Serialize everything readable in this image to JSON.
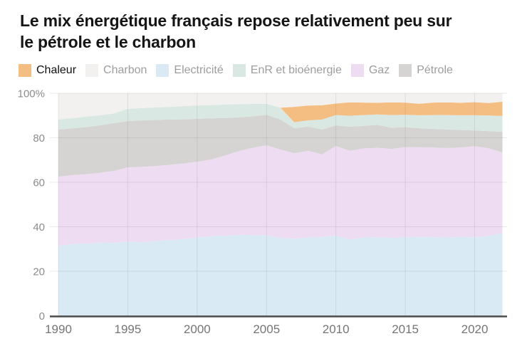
{
  "title": {
    "line1": "Le mix énergétique français repose relativement peu sur",
    "line2": "le pétrole et le charbon"
  },
  "legend": {
    "items": [
      {
        "label": "Chaleur",
        "color": "#f4be82",
        "active": true
      },
      {
        "label": "Charbon",
        "color": "#f2f1ef",
        "active": false
      },
      {
        "label": "Electricité",
        "color": "#d9eaf5",
        "active": false
      },
      {
        "label": "EnR et bioénergie",
        "color": "#d9e8e3",
        "active": false
      },
      {
        "label": "Gaz",
        "color": "#eeddf2",
        "active": false
      },
      {
        "label": "Pétrole",
        "color": "#d5d4d2",
        "active": false
      }
    ]
  },
  "axis": {
    "y_ticks": [
      {
        "v": 0,
        "label": "0"
      },
      {
        "v": 20,
        "label": "20"
      },
      {
        "v": 40,
        "label": "40"
      },
      {
        "v": 60,
        "label": "60"
      },
      {
        "v": 80,
        "label": "80"
      },
      {
        "v": 100,
        "label": "100%"
      }
    ],
    "x_ticks": [
      1990,
      1995,
      2000,
      2005,
      2010,
      2015,
      2020
    ]
  },
  "chart_data": {
    "type": "area",
    "stacked": true,
    "normalized": true,
    "unit": "%",
    "ylim": [
      0,
      100
    ],
    "xlim": [
      1990,
      2022
    ],
    "grid": true,
    "legend_position": "top",
    "x": [
      1990,
      1991,
      1992,
      1993,
      1994,
      1995,
      1996,
      1997,
      1998,
      1999,
      2000,
      2001,
      2002,
      2003,
      2004,
      2005,
      2006,
      2007,
      2008,
      2009,
      2010,
      2011,
      2012,
      2013,
      2014,
      2015,
      2016,
      2017,
      2018,
      2019,
      2020,
      2021,
      2022
    ],
    "series": [
      {
        "name": "Electricité",
        "color": "#d9eaf5",
        "values": [
          31.5,
          32.2,
          32.4,
          32.9,
          32.7,
          33.4,
          33.0,
          33.6,
          34.0,
          34.4,
          35.2,
          35.7,
          36.0,
          36.4,
          36.3,
          36.2,
          35.0,
          34.6,
          35.2,
          35.5,
          36.0,
          34.2,
          35.2,
          35.3,
          35.0,
          35.3,
          35.5,
          35.3,
          35.2,
          35.4,
          35.3,
          35.8,
          37.2
        ]
      },
      {
        "name": "Gaz",
        "color": "#eeddf2",
        "values": [
          31.0,
          31.0,
          31.2,
          31.4,
          32.4,
          33.3,
          33.9,
          33.7,
          33.8,
          34.0,
          34.0,
          34.5,
          36.0,
          37.6,
          39.2,
          40.4,
          39.7,
          38.5,
          38.9,
          37.0,
          40.3,
          39.9,
          40.0,
          40.2,
          40.0,
          40.5,
          40.2,
          40.3,
          40.2,
          40.2,
          40.9,
          39.5,
          36.2
        ]
      },
      {
        "name": "Pétrole",
        "color": "#d5d4d2",
        "values": [
          21.2,
          21.0,
          21.2,
          21.3,
          21.5,
          20.8,
          20.9,
          20.7,
          20.4,
          19.9,
          19.3,
          18.5,
          16.9,
          15.2,
          14.1,
          13.7,
          13.5,
          11.2,
          10.9,
          11.2,
          9.2,
          10.9,
          10.1,
          10.3,
          9.5,
          9.0,
          8.6,
          8.4,
          8.3,
          7.9,
          7.1,
          7.7,
          9.3
        ]
      },
      {
        "name": "EnR et bioénergie",
        "color": "#d9e8e3",
        "values": [
          4.5,
          4.6,
          4.7,
          4.5,
          4.3,
          5.5,
          5.5,
          5.6,
          5.7,
          5.9,
          6.0,
          6.0,
          6.0,
          5.9,
          5.6,
          5.0,
          5.3,
          2.7,
          2.8,
          4.5,
          4.7,
          4.9,
          4.9,
          4.7,
          5.7,
          5.5,
          5.8,
          6.2,
          6.5,
          6.6,
          6.8,
          7.0,
          7.1
        ]
      },
      {
        "name": "Chaleur",
        "color": "#f4be82",
        "values": [
          0,
          0,
          0,
          0,
          0,
          0,
          0,
          0,
          0,
          0,
          0,
          0,
          0,
          0,
          0,
          0,
          0,
          6.9,
          6.7,
          6.4,
          5.2,
          6.0,
          5.6,
          5.2,
          5.7,
          5.5,
          5.2,
          5.6,
          5.7,
          5.6,
          5.9,
          5.6,
          6.4
        ]
      },
      {
        "name": "Charbon",
        "color": "#f2f1ef",
        "values": [
          11.8,
          11.2,
          10.5,
          9.9,
          9.1,
          7.0,
          6.7,
          6.4,
          6.1,
          5.8,
          5.5,
          5.3,
          5.1,
          4.9,
          4.8,
          4.7,
          6.5,
          6.1,
          5.5,
          5.4,
          4.6,
          4.1,
          4.2,
          4.3,
          4.1,
          4.2,
          4.7,
          4.2,
          4.1,
          4.3,
          4.0,
          4.4,
          3.8
        ]
      }
    ]
  }
}
